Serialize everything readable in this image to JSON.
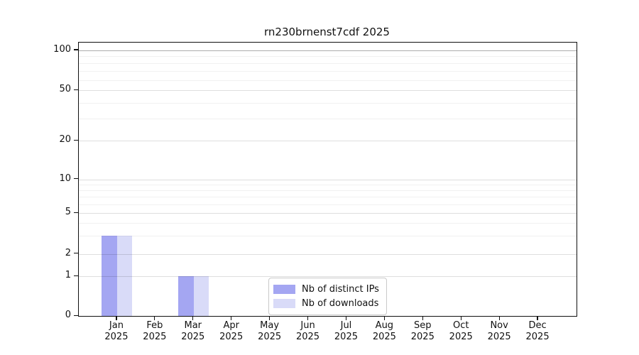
{
  "figure": {
    "background": "#ffffff",
    "text_color": "#111111"
  },
  "chart_data": {
    "type": "bar",
    "title": "rn230brnenst7cdf 2025",
    "categories": [
      "Jan",
      "Feb",
      "Mar",
      "Apr",
      "May",
      "Jun",
      "Jul",
      "Aug",
      "Sep",
      "Oct",
      "Nov",
      "Dec"
    ],
    "year_label": "2025",
    "series": [
      {
        "name": "Nb of distinct IPs",
        "color": "#a4a6f2",
        "values": [
          3,
          0,
          1,
          0,
          0,
          0,
          0,
          0,
          0,
          0,
          0,
          0
        ]
      },
      {
        "name": "Nb of downloads",
        "color": "#d9dbf8",
        "values": [
          3,
          0,
          1,
          0,
          0,
          0,
          0,
          0,
          0,
          0,
          0,
          0
        ]
      }
    ],
    "xlabel": "",
    "ylabel": "",
    "y_axis": {
      "scale": "symlog",
      "ticks": [
        0,
        1,
        2,
        5,
        10,
        20,
        50,
        100
      ],
      "minor_ticks": [
        3,
        4,
        6,
        7,
        8,
        9,
        30,
        40,
        60,
        70,
        80,
        90
      ],
      "ylim": [
        0,
        115
      ]
    },
    "grid": "on",
    "legend": {
      "position": "lower center",
      "entries": [
        "Nb of distinct IPs",
        "Nb of downloads"
      ]
    }
  }
}
